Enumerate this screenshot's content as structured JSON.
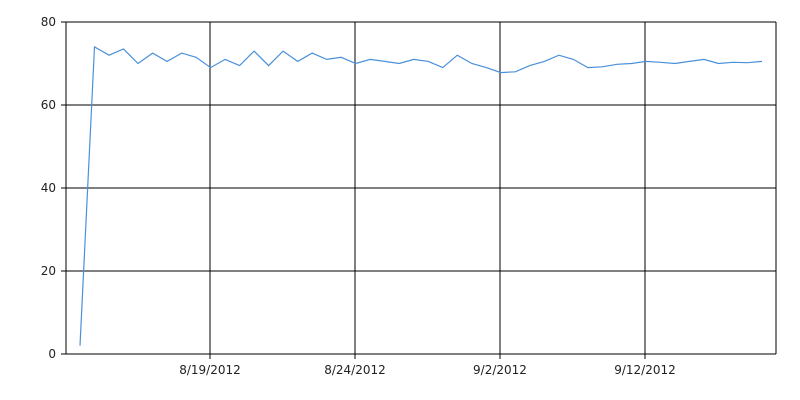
{
  "chart_data": {
    "type": "line",
    "title": "",
    "xlabel": "",
    "ylabel": "",
    "ylim": [
      0,
      80
    ],
    "y_ticks": [
      "0",
      "20",
      "40",
      "60",
      "80"
    ],
    "x_tick_labels": [
      "8/19/2012",
      "8/24/2012",
      "9/2/2012",
      "9/12/2012"
    ],
    "grid": true,
    "line_color": "#4a90d9",
    "grid_color": "#000000",
    "series": [
      {
        "values": [
          2,
          74,
          72,
          73.5,
          70,
          72.5,
          70.5,
          72.5,
          71.5,
          69,
          71,
          69.5,
          73,
          69.5,
          73,
          70.5,
          72.5,
          71,
          71.5,
          70,
          71,
          70.5,
          70,
          71,
          70.5,
          69,
          72,
          70,
          69,
          67.8,
          68,
          69.5,
          70.5,
          72,
          71,
          69,
          69.2,
          69.8,
          70,
          70.5,
          70.3,
          70,
          70.5,
          71,
          70,
          70.3,
          70.2,
          70.5
        ]
      }
    ]
  }
}
